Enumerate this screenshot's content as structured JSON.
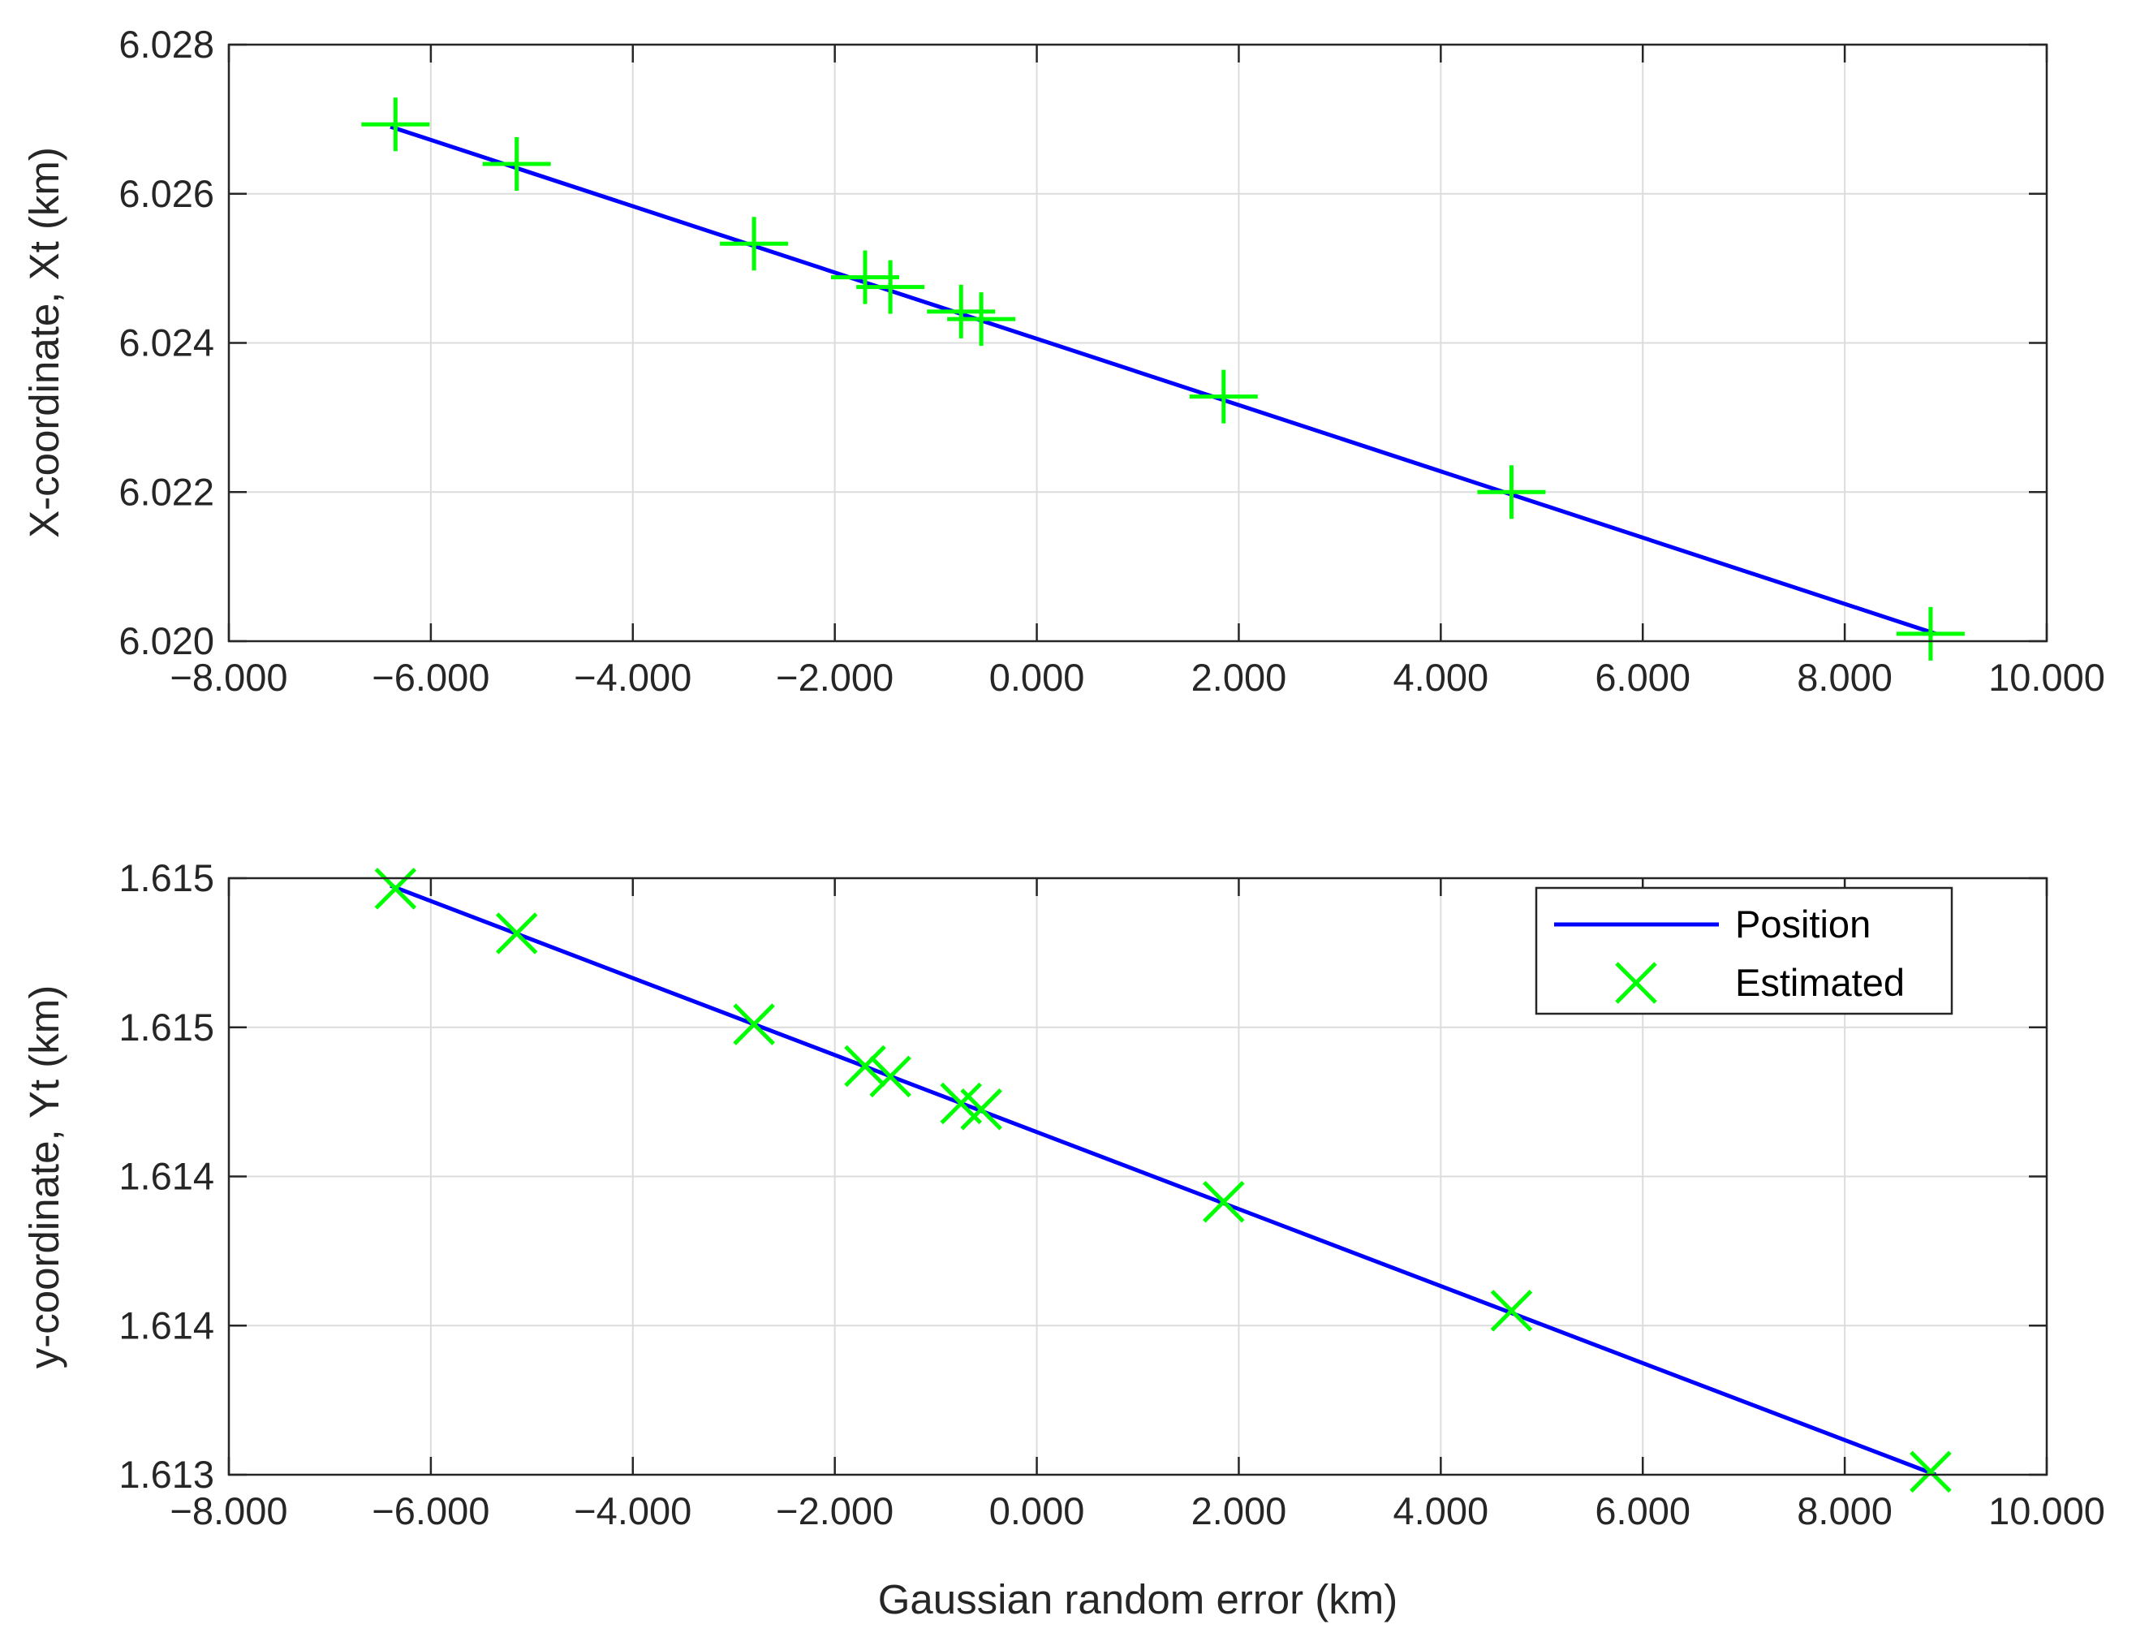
{
  "colors": {
    "position_line": "#0000ff",
    "estimated_marker": "#00ff00",
    "axes": "#262626",
    "grid": "#dcdcdc"
  },
  "chart_data": [
    {
      "type": "line",
      "panel": "top",
      "xlabel": "",
      "ylabel": "X-coordinate, Xt (km)",
      "xlim": [
        -8,
        10
      ],
      "ylim": [
        6.02,
        6.028
      ],
      "xticks": [
        -8,
        -6,
        -4,
        -2,
        0,
        2,
        4,
        6,
        8,
        10
      ],
      "xtick_labels": [
        "−8.000",
        "−6.000",
        "−4.000",
        "−2.000",
        "0.000",
        "2.000",
        "4.000",
        "6.000",
        "8.000",
        "10.000"
      ],
      "yticks": [
        6.02,
        6.022,
        6.024,
        6.026,
        6.028
      ],
      "ytick_labels": [
        "6.020",
        "6.022",
        "6.024",
        "6.026",
        "6.028"
      ],
      "grid": true,
      "series": [
        {
          "name": "Position",
          "style": "line",
          "x": [
            -6.4,
            8.9
          ],
          "y": [
            6.0269,
            6.0201
          ]
        },
        {
          "name": "Estimated",
          "style": "marker-plus",
          "x": [
            -6.35,
            -5.15,
            -2.8,
            -1.7,
            -1.45,
            -0.75,
            -0.55,
            1.85,
            4.7,
            8.85
          ],
          "y": [
            6.02693,
            6.0264,
            6.02533,
            6.02488,
            6.02475,
            6.02442,
            6.02432,
            6.02328,
            6.022,
            6.0201
          ]
        }
      ]
    },
    {
      "type": "line",
      "panel": "bottom",
      "xlabel": "Gaussian random error (km)",
      "ylabel": "y-coordinate, Yt (km)",
      "xlim": [
        -8,
        10
      ],
      "ylim": [
        0,
        4
      ],
      "xticks": [
        -8,
        -6,
        -4,
        -2,
        0,
        2,
        4,
        6,
        8,
        10
      ],
      "xtick_labels": [
        "−8.000",
        "−6.000",
        "−4.000",
        "−2.000",
        "0.000",
        "2.000",
        "4.000",
        "6.000",
        "8.000",
        "10.000"
      ],
      "yticks": [
        0,
        1,
        2,
        3,
        4
      ],
      "ytick_labels": [
        "1.613",
        "1.614",
        "1.614",
        "1.615",
        "1.615"
      ],
      "grid": true,
      "legend": {
        "location": "top-right",
        "entries": [
          {
            "label": "Position",
            "style": "line"
          },
          {
            "label": "Estimated",
            "style": "marker-x"
          }
        ]
      },
      "series": [
        {
          "name": "Position",
          "style": "line",
          "x": [
            -6.4,
            8.9
          ],
          "y": [
            3.95,
            0.0
          ]
        },
        {
          "name": "Estimated",
          "style": "marker-x",
          "x": [
            -6.35,
            -5.15,
            -2.8,
            -1.7,
            -1.45,
            -0.75,
            -0.55,
            1.85,
            4.7,
            8.85
          ],
          "y": [
            3.93,
            3.63,
            3.02,
            2.74,
            2.67,
            2.49,
            2.45,
            1.83,
            1.1,
            0.02
          ]
        }
      ]
    }
  ]
}
